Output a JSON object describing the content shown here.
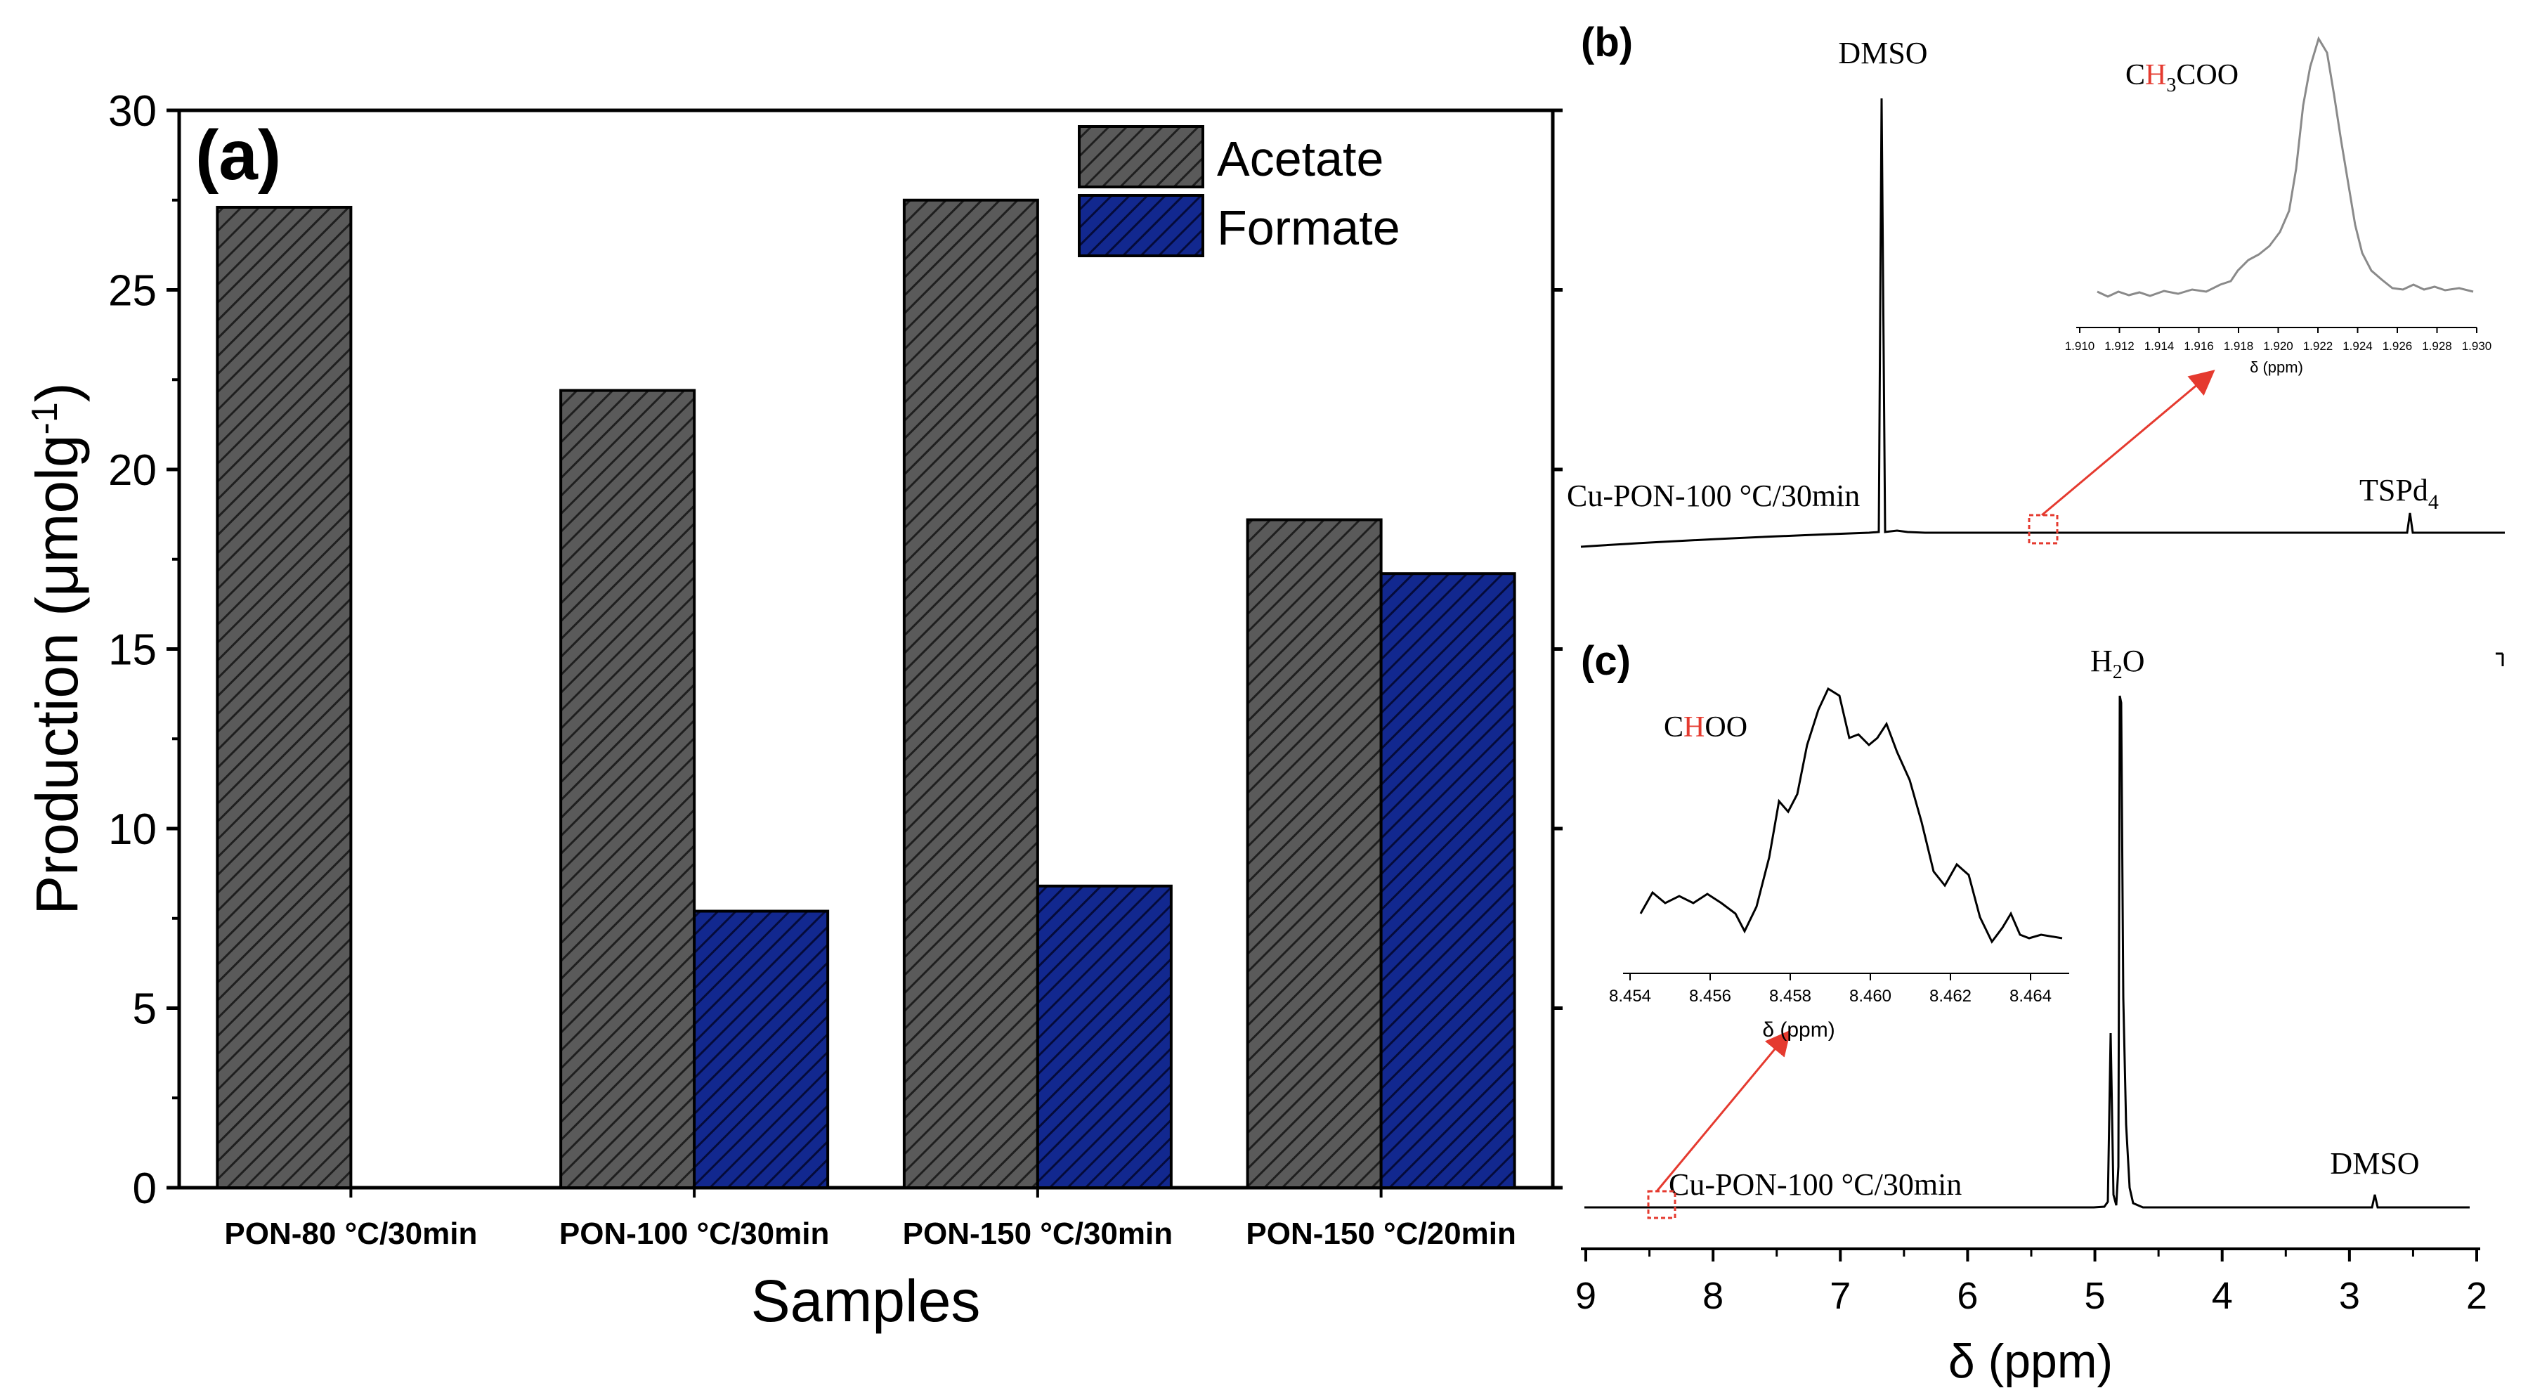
{
  "chart_data": [
    {
      "panel": "(a)",
      "type": "bar",
      "xlabel": "Samples",
      "ylabel": "Production (μmolg",
      "ylabel_sup": "-1",
      "ylabel_close": ")",
      "ylim": [
        0,
        30
      ],
      "yticks": [
        0,
        5,
        10,
        15,
        20,
        25,
        30
      ],
      "categories": [
        "PON-80 °C/30min",
        "PON-100 °C/30min",
        "PON-150 °C/30min",
        "PON-150 °C/20min"
      ],
      "series": [
        {
          "name": "Acetate",
          "values": [
            27.3,
            22.2,
            27.5,
            18.6
          ],
          "color": "#555555"
        },
        {
          "name": "Formate",
          "values": [
            0,
            7.7,
            8.4,
            17.1
          ],
          "color": "#0a1a6e"
        }
      ],
      "legend_position": "top-right"
    },
    {
      "panel": "(b)",
      "type": "line",
      "sample_label": "Cu-PON-100 °C/30min",
      "peak_labels": {
        "dmso": "DMSO",
        "tsp_main": "TSPd",
        "tsp_sub": "4"
      },
      "inset": {
        "label_pre": "C",
        "label_h": "H",
        "label_sub": "3",
        "label_post": "COO",
        "xlabel": "δ (ppm)",
        "xticks": [
          "1.910",
          "1.912",
          "1.914",
          "1.916",
          "1.918",
          "1.920",
          "1.922",
          "1.924",
          "1.926",
          "1.928",
          "1.930"
        ],
        "peak_ppm": 1.9225
      }
    },
    {
      "panel": "(c)",
      "type": "line",
      "sample_label": "Cu-PON-100 °C/30min",
      "peak_labels": {
        "water_main": "H",
        "water_sub": "2",
        "water_post": "O",
        "dmso": "DMSO"
      },
      "xlabel": "δ (ppm)",
      "xlim": [
        9,
        2
      ],
      "xticks": [
        9,
        8,
        7,
        6,
        5,
        4,
        3,
        2
      ],
      "inset": {
        "label_pre": "C",
        "label_h": "H",
        "label_post": "OO",
        "xlabel": "δ (ppm)",
        "xticks": [
          "8.454",
          "8.456",
          "8.458",
          "8.460",
          "8.462",
          "8.464"
        ],
        "peak_ppm": 8.4595
      }
    }
  ]
}
